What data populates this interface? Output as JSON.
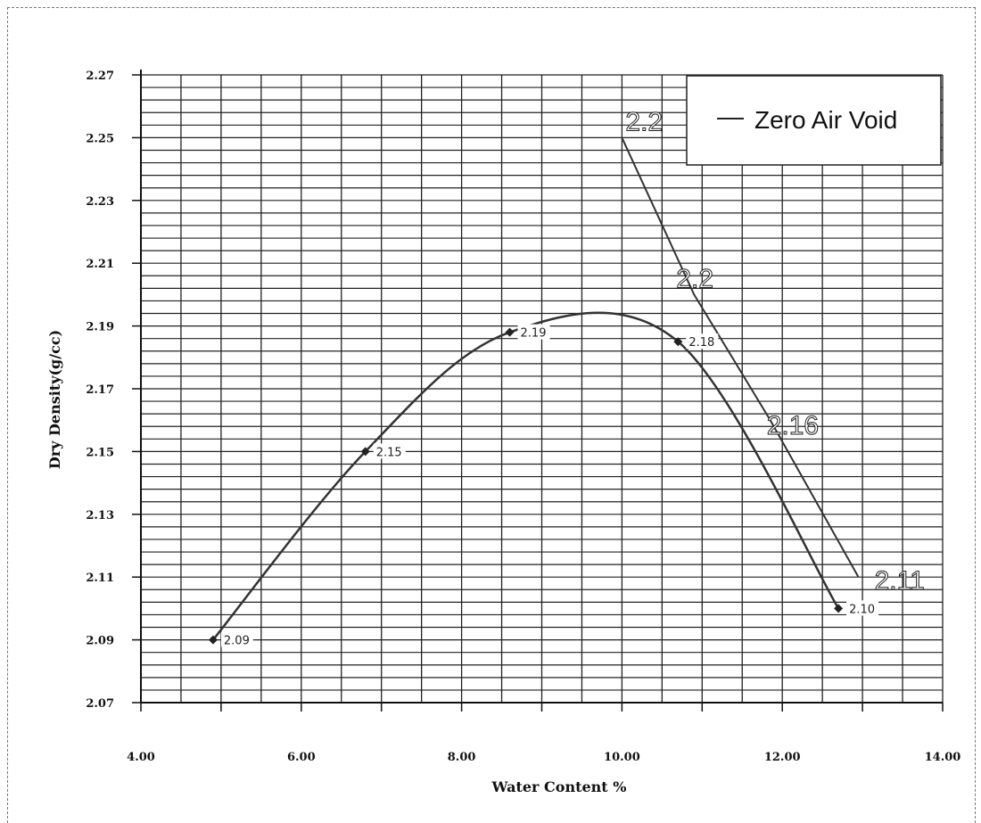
{
  "chart_data": {
    "type": "line",
    "title": "",
    "xlabel": "Water Content %",
    "ylabel": "Dry Density(g/cc)",
    "xlim": [
      4.0,
      14.0
    ],
    "ylim": [
      2.07,
      2.27
    ],
    "x_ticks": [
      "4.00",
      "6.00",
      "8.00",
      "10.00",
      "12.00",
      "14.00"
    ],
    "y_ticks": [
      "2.07",
      "2.09",
      "2.11",
      "2.13",
      "2.15",
      "2.17",
      "2.19",
      "2.21",
      "2.23",
      "2.25",
      "2.27"
    ],
    "grid": true,
    "legend": {
      "position": "top-right",
      "entries": [
        "Zero Air Void"
      ]
    },
    "series": [
      {
        "x": [
          4.9,
          6.8,
          8.6,
          10.7,
          12.7
        ],
        "y": [
          2.09,
          2.15,
          2.188,
          2.185,
          2.1
        ],
        "data_labels": [
          "2.09",
          "2.15",
          "2.19",
          "2.18",
          "2.10"
        ],
        "markers": true,
        "smooth": true
      },
      {
        "name": "Zero Air Void",
        "x": [
          10.0,
          10.9,
          11.85,
          12.95
        ],
        "y": [
          2.25,
          2.2,
          2.16,
          2.11
        ],
        "data_labels": [
          "2.2",
          "2.2",
          "2.16",
          "2.11"
        ],
        "markers": false
      }
    ],
    "colors": {
      "line": "#333333",
      "grid": "#222222",
      "background": "#ffffff"
    }
  }
}
